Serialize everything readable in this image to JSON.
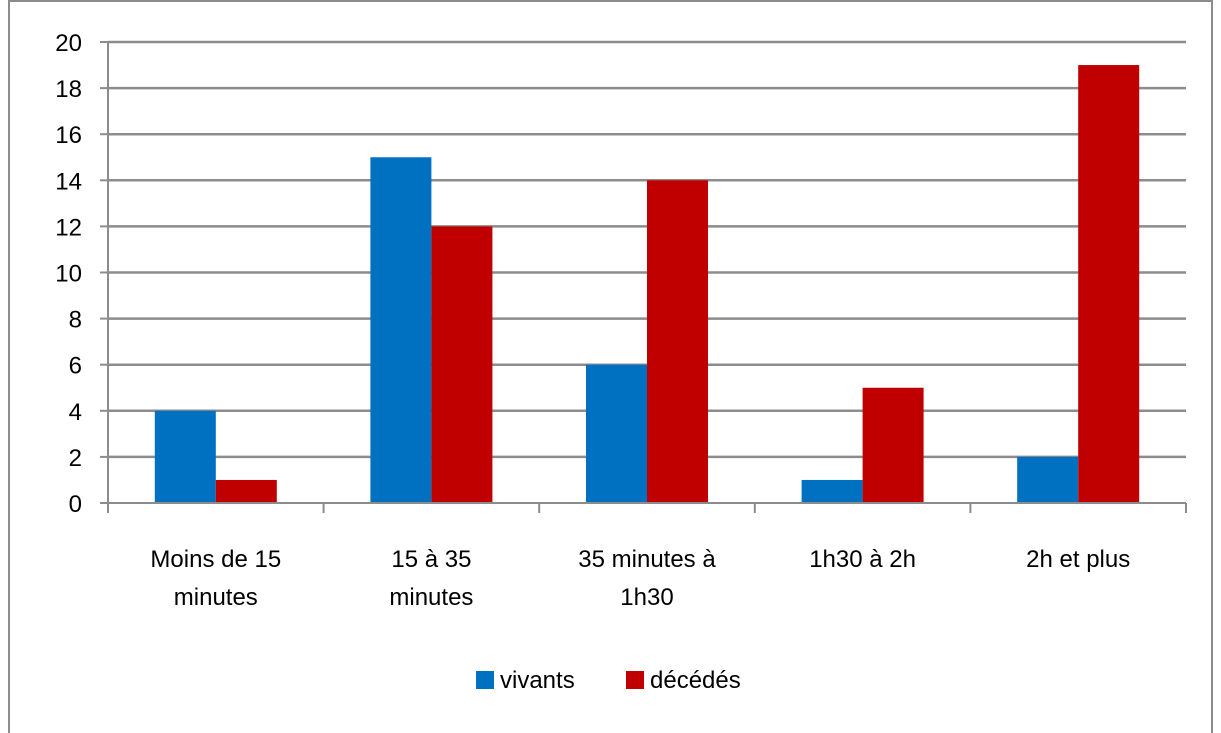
{
  "chart_data": {
    "type": "bar",
    "categories": [
      [
        "Moins de 15",
        "minutes"
      ],
      [
        "15 à 35",
        "minutes"
      ],
      [
        "35 minutes à",
        "1h30"
      ],
      [
        "1h30 à 2h"
      ],
      [
        "2h et plus"
      ]
    ],
    "series": [
      {
        "name": "vivants",
        "color": "#0070C0",
        "values": [
          4,
          15,
          6,
          1,
          2
        ]
      },
      {
        "name": "décédés",
        "color": "#C00000",
        "values": [
          1,
          12,
          14,
          5,
          19
        ]
      }
    ],
    "ylim": [
      0,
      20
    ],
    "yticks": [
      0,
      2,
      4,
      6,
      8,
      10,
      12,
      14,
      16,
      18,
      20
    ],
    "grid": true,
    "legend_position": "bottom"
  }
}
